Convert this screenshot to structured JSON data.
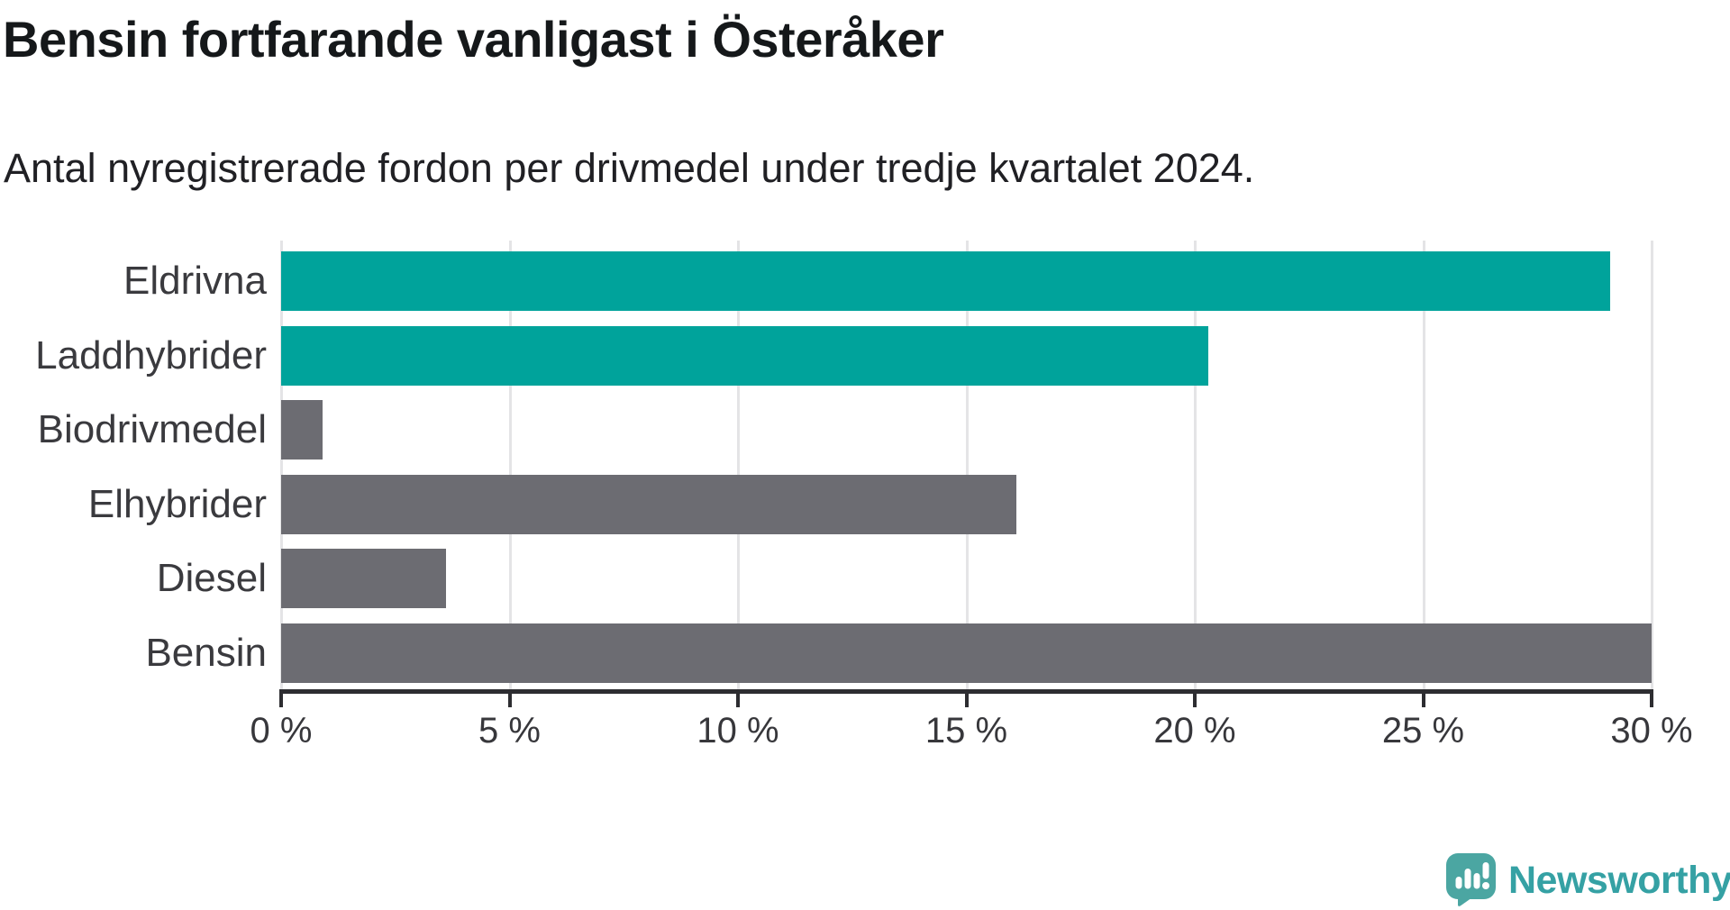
{
  "header": {
    "title": "Bensin fortfarande vanligast i Österåker",
    "subtitle": "Antal nyregistrerade fordon per drivmedel under tredje kvartalet 2024."
  },
  "chart_data": {
    "type": "bar",
    "orientation": "horizontal",
    "title": "Bensin fortfarande vanligast i Österåker",
    "subtitle": "Antal nyregistrerade fordon per drivmedel under tredje kvartalet 2024.",
    "categories": [
      "Eldrivna",
      "Laddhybrider",
      "Biodrivmedel",
      "Elhybrider",
      "Diesel",
      "Bensin"
    ],
    "values": [
      29.1,
      20.3,
      0.9,
      16.1,
      3.6,
      30.0
    ],
    "unit": "%",
    "xlim": [
      0,
      30
    ],
    "x_tick_step": 5,
    "x_tick_labels": [
      "0 %",
      "5 %",
      "10 %",
      "15 %",
      "20 %",
      "25 %",
      "30 %"
    ],
    "bar_colors": [
      "#00a39b",
      "#00a39b",
      "#6c6c72",
      "#6c6c72",
      "#6c6c72",
      "#6c6c72"
    ],
    "colors": {
      "highlight": "#00a39b",
      "default": "#6c6c72",
      "gridline": "#e4e4e6",
      "axis": "#2d2d31",
      "tick_label": "#37373b",
      "category_label": "#3a3a3e"
    },
    "grid": "vertical-only",
    "legend": "none",
    "ylabel": "",
    "xlabel": ""
  },
  "branding": {
    "logo_text": "Newsworthy",
    "logo_icon": "newsworthy-speech-bubble-chart-icon",
    "icon_color": "#4ba6a2",
    "text_color": "#35a1a4"
  }
}
